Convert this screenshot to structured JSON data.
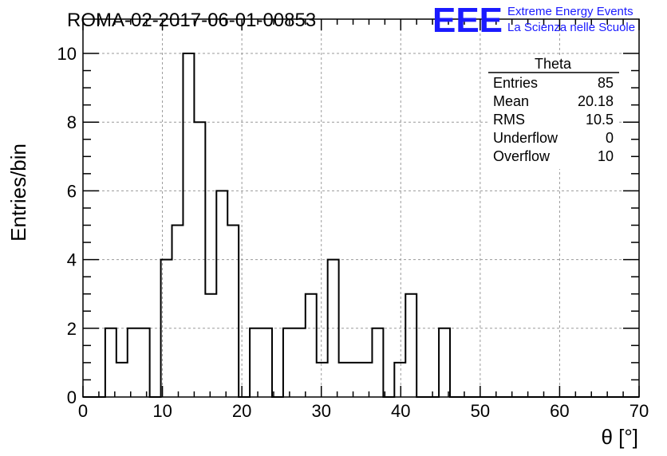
{
  "header": {
    "run_title": "ROMA-02-2017-06-01-00853"
  },
  "logo": {
    "mark": "EEE",
    "line1": "Extreme Energy Events",
    "line2": "La Scienza nelle Scuole",
    "color": "#1a1aff"
  },
  "stats": {
    "title": "Theta",
    "rows": [
      {
        "label": "Entries",
        "value": "85"
      },
      {
        "label": "Mean",
        "value": "20.18"
      },
      {
        "label": "RMS",
        "value": "10.5"
      },
      {
        "label": "Underflow",
        "value": "0"
      },
      {
        "label": "Overflow",
        "value": "10"
      }
    ]
  },
  "chart_data": {
    "type": "histogram",
    "xlabel": "θ [°]",
    "ylabel": "Entries/bin",
    "xlim": [
      0,
      70
    ],
    "ylim": [
      0,
      10
    ],
    "x_ticks": [
      0,
      10,
      20,
      30,
      40,
      50,
      60,
      70
    ],
    "y_ticks": [
      0,
      2,
      4,
      6,
      8,
      10
    ],
    "grid": true,
    "bin_width": 1.4,
    "bin_edges_start": 0,
    "counts": [
      0,
      0,
      2,
      1,
      2,
      2,
      0,
      4,
      5,
      10,
      8,
      3,
      6,
      5,
      0,
      2,
      2,
      0,
      2,
      2,
      3,
      1,
      4,
      1,
      1,
      1,
      2,
      0,
      1,
      3,
      0,
      0,
      2,
      0,
      0,
      0,
      0,
      0,
      0,
      0,
      0,
      0,
      0,
      0,
      0,
      0,
      0,
      0,
      0,
      0
    ],
    "line_color": "#000000"
  }
}
